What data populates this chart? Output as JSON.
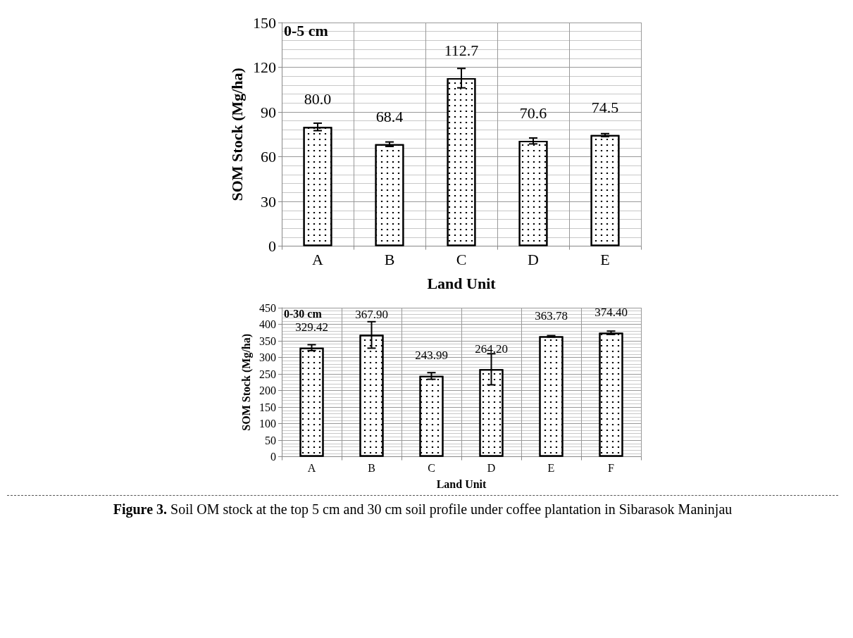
{
  "chart_data": [
    {
      "type": "bar",
      "xlabel": "Land Unit",
      "ylabel": "SOM Stock (Mg/ha)",
      "categories": [
        "A",
        "B",
        "C",
        "D",
        "E"
      ],
      "values": [
        80.0,
        68.4,
        112.7,
        70.6,
        74.5
      ],
      "value_labels": [
        "80.0",
        "68.4",
        "112.7",
        "70.6",
        "74.5"
      ],
      "errors": [
        2.5,
        1.5,
        6.5,
        2,
        1
      ],
      "color": "#ffffff",
      "ylim": [
        0,
        150
      ],
      "yticks": [
        0,
        30,
        60,
        90,
        120,
        150
      ],
      "grid": true,
      "annotations": [
        "0-5 cm"
      ]
    },
    {
      "type": "bar",
      "xlabel": "Land Unit",
      "ylabel": "SOM Stock (Mg/ha)",
      "categories": [
        "A",
        "B",
        "C",
        "D",
        "E",
        "F"
      ],
      "values": [
        329.42,
        367.9,
        243.99,
        264.2,
        363.78,
        374.4
      ],
      "value_labels": [
        "329.42",
        "367.90",
        "243.99",
        "264.20",
        "363.78",
        "374.40"
      ],
      "errors": [
        9,
        40,
        10,
        47,
        2,
        5
      ],
      "color": "#ffffff",
      "ylim": [
        0,
        450
      ],
      "yticks": [
        0,
        50,
        100,
        150,
        200,
        250,
        300,
        350,
        400,
        450
      ],
      "grid": true,
      "annotations": [
        "0-30 cm",
        "Figure 3. Soil OM stock at the top 5 cm and 30 cm soil profile under coffee plantation in Sibarasok Maninjau"
      ]
    }
  ]
}
